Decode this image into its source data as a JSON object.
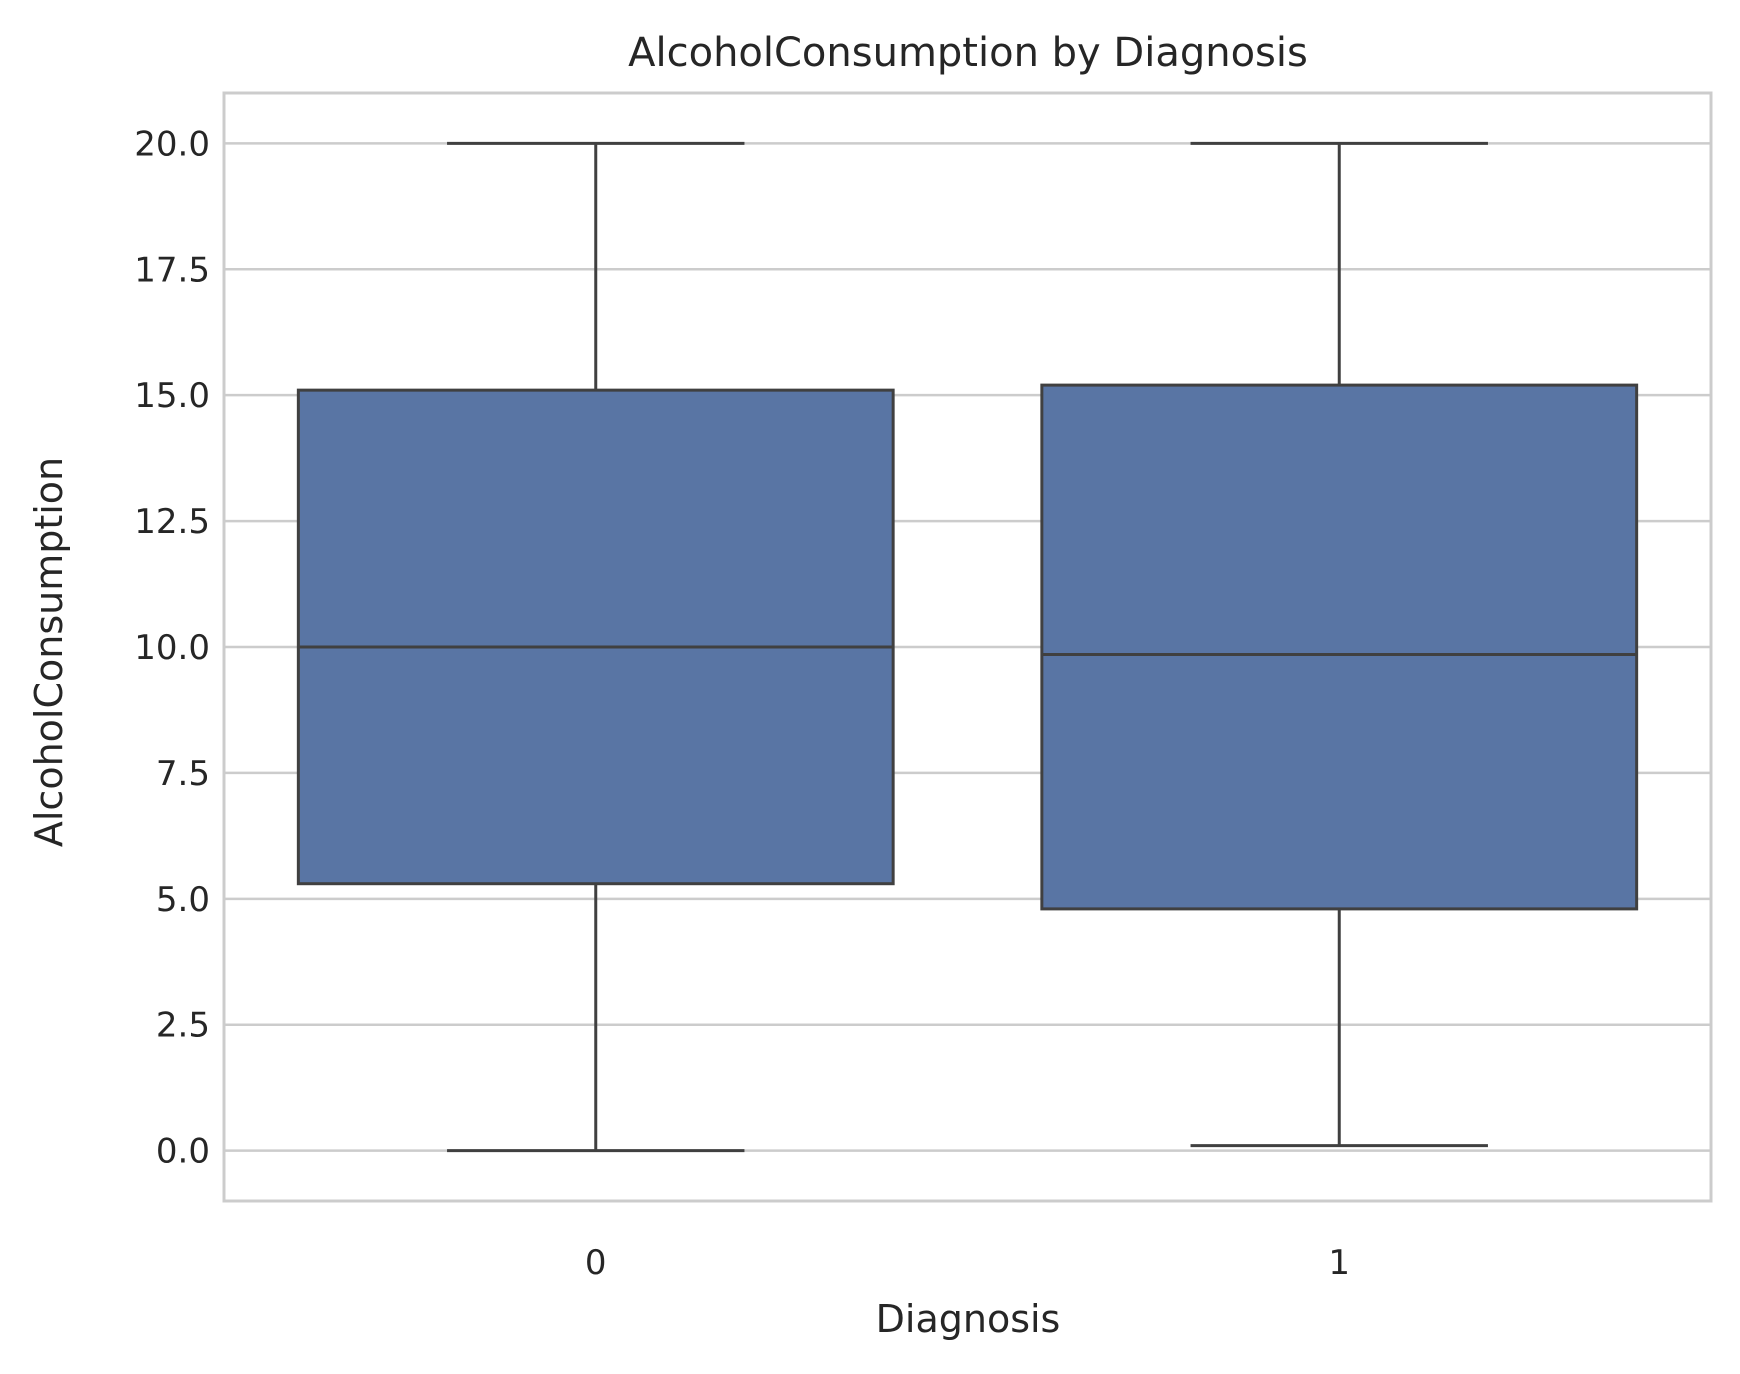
{
  "chart_data": {
    "type": "box",
    "title": "AlcoholConsumption by Diagnosis",
    "xlabel": "Diagnosis",
    "ylabel": "AlcoholConsumption",
    "categories": [
      "0",
      "1"
    ],
    "boxes": [
      {
        "category": "0",
        "min": 0.0,
        "q1": 5.3,
        "median": 10.0,
        "q3": 15.1,
        "max": 20.0
      },
      {
        "category": "1",
        "min": 0.1,
        "q1": 4.8,
        "median": 9.85,
        "q3": 15.2,
        "max": 20.0
      }
    ],
    "ylim": [
      -1.0,
      21.0
    ],
    "yticks": [
      0.0,
      2.5,
      5.0,
      7.5,
      10.0,
      12.5,
      15.0,
      17.5,
      20.0
    ],
    "ytick_labels": [
      "0.0",
      "2.5",
      "5.0",
      "7.5",
      "10.0",
      "12.5",
      "15.0",
      "17.5",
      "20.0"
    ],
    "grid": "horizontal",
    "box_color": "#5975a4",
    "line_color": "#404040",
    "grid_color": "#cccccc"
  }
}
